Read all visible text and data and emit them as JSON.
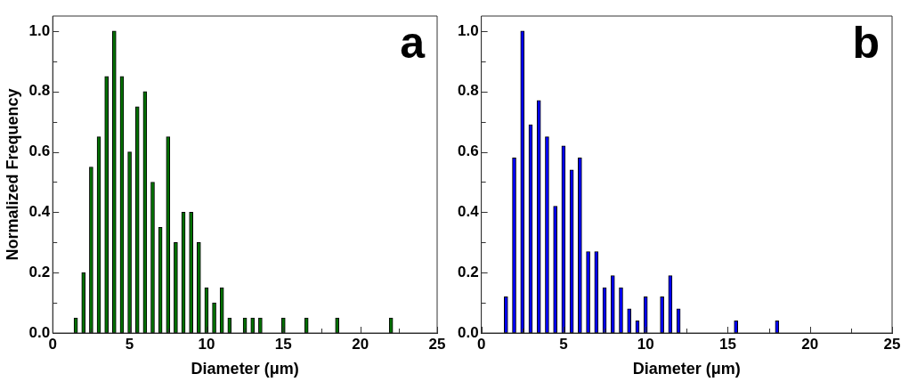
{
  "chart_data": [
    {
      "type": "bar",
      "xlabel": "Diameter (μm)",
      "ylabel": "Normalized Frequency",
      "annotations": [
        "a"
      ],
      "x": [
        1.5,
        2,
        2.5,
        3,
        3.5,
        4,
        4.5,
        5,
        5.5,
        6,
        6.5,
        7,
        7.5,
        8,
        8.5,
        9,
        9.5,
        10,
        10.5,
        11,
        11.5,
        12.5,
        13,
        13.5,
        15,
        16.5,
        18.5,
        22
      ],
      "series": [
        {
          "color": "#007000",
          "values": [
            0.05,
            0.2,
            0.55,
            0.65,
            0.85,
            1.0,
            0.85,
            0.6,
            0.75,
            0.8,
            0.5,
            0.35,
            0.65,
            0.3,
            0.4,
            0.4,
            0.3,
            0.15,
            0.1,
            0.15,
            0.05,
            0.05,
            0.05,
            0.05,
            0.05,
            0.05,
            0.05,
            0.05
          ]
        }
      ],
      "xlim": [
        0,
        25
      ],
      "xticks": [
        0,
        {
          "value": 2.5,
          "label": null
        },
        5,
        {
          "value": 7.5,
          "label": null
        },
        10,
        {
          "value": 12.5,
          "label": null
        },
        15,
        {
          "value": 17.5,
          "label": null
        },
        20,
        {
          "value": 22.5,
          "label": null
        },
        25
      ],
      "ylim": [
        0,
        1.05
      ],
      "yticks": [
        {
          "value": 0,
          "label": "0.0"
        },
        {
          "value": 0.1,
          "label": null
        },
        {
          "value": 0.2,
          "label": "0.2"
        },
        {
          "value": 0.3,
          "label": null
        },
        {
          "value": 0.4,
          "label": "0.4"
        },
        {
          "value": 0.5,
          "label": null
        },
        {
          "value": 0.6,
          "label": "0.6"
        },
        {
          "value": 0.7,
          "label": null
        },
        {
          "value": 0.8,
          "label": "0.8"
        },
        {
          "value": 0.9,
          "label": null
        },
        {
          "value": 1.0,
          "label": "1.0"
        }
      ],
      "grid": false,
      "legend": false
    },
    {
      "type": "bar",
      "xlabel": "Diameter (μm)",
      "annotations": [
        "b"
      ],
      "x": [
        1.5,
        2,
        2.5,
        3,
        3.5,
        4,
        4.5,
        5,
        5.5,
        6,
        6.5,
        7,
        7.5,
        8,
        8.5,
        9,
        9.5,
        10,
        11,
        11.5,
        12,
        15.5,
        18
      ],
      "series": [
        {
          "color": "#0000ff",
          "values": [
            0.12,
            0.58,
            1.0,
            0.69,
            0.77,
            0.65,
            0.42,
            0.62,
            0.54,
            0.58,
            0.27,
            0.27,
            0.15,
            0.19,
            0.15,
            0.08,
            0.04,
            0.12,
            0.12,
            0.19,
            0.08,
            0.04,
            0.04
          ]
        }
      ],
      "xlim": [
        0,
        25
      ],
      "xticks": [
        0,
        {
          "value": 2.5,
          "label": null
        },
        5,
        {
          "value": 7.5,
          "label": null
        },
        10,
        {
          "value": 12.5,
          "label": null
        },
        15,
        {
          "value": 17.5,
          "label": null
        },
        20,
        {
          "value": 22.5,
          "label": null
        },
        25
      ],
      "ylim": [
        0,
        1.05
      ],
      "yticks": [
        {
          "value": 0,
          "label": "0.0"
        },
        {
          "value": 0.1,
          "label": null
        },
        {
          "value": 0.2,
          "label": "0.2"
        },
        {
          "value": 0.3,
          "label": null
        },
        {
          "value": 0.4,
          "label": "0.4"
        },
        {
          "value": 0.5,
          "label": null
        },
        {
          "value": 0.6,
          "label": "0.6"
        },
        {
          "value": 0.7,
          "label": null
        },
        {
          "value": 0.8,
          "label": "0.8"
        },
        {
          "value": 0.9,
          "label": null
        },
        {
          "value": 1.0,
          "label": "1.0"
        }
      ],
      "grid": false,
      "legend": false
    }
  ]
}
